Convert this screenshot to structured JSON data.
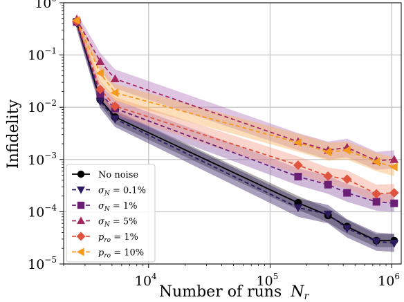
{
  "chart_data": {
    "type": "line",
    "xlabel": "Number of runs",
    "xlabel_symbol": "N",
    "xlabel_symbol_sub": "r",
    "ylabel": "Infidelity",
    "xscale": "log",
    "yscale": "log",
    "xlim": [
      2000,
      1200000
    ],
    "ylim": [
      1e-05,
      1
    ],
    "grid": true,
    "legend_position": "lower-left",
    "x_ticks": [
      {
        "value": 10000,
        "base": "10",
        "exp": "4"
      },
      {
        "value": 100000,
        "base": "10",
        "exp": "5"
      },
      {
        "value": 1000000,
        "base": "10",
        "exp": "6"
      }
    ],
    "y_ticks": [
      {
        "value": 1,
        "base": "10",
        "exp": "0"
      },
      {
        "value": 0.1,
        "base": "10",
        "exp": "−1"
      },
      {
        "value": 0.01,
        "base": "10",
        "exp": "−2"
      },
      {
        "value": 0.001,
        "base": "10",
        "exp": "−3"
      },
      {
        "value": 0.0001,
        "base": "10",
        "exp": "−4"
      },
      {
        "value": 1e-05,
        "base": "10",
        "exp": "−5"
      }
    ],
    "series": [
      {
        "name": "No noise",
        "symbol": "",
        "sub": "",
        "suffix": "No noise",
        "color": "#000000",
        "band": "#3a3a3a",
        "dash": "solid",
        "marker": "circle",
        "points": [
          {
            "x": 2560,
            "y": 0.42,
            "lo": 0.34,
            "hi": 0.52
          },
          {
            "x": 4000,
            "y": 0.014,
            "lo": 0.011,
            "hi": 0.018
          },
          {
            "x": 5300,
            "y": 0.0065,
            "lo": 0.0048,
            "hi": 0.0088
          },
          {
            "x": 170000,
            "y": 0.000148,
            "lo": 0.00011,
            "hi": 0.0002
          },
          {
            "x": 300000,
            "y": 8.5e-05,
            "lo": 6.2e-05,
            "hi": 0.000115
          },
          {
            "x": 430000,
            "y": 5.2e-05,
            "lo": 3.8e-05,
            "hi": 7e-05
          },
          {
            "x": 750000,
            "y": 2.8e-05,
            "lo": 2.1e-05,
            "hi": 3.7e-05
          },
          {
            "x": 1050000,
            "y": 2.8e-05,
            "lo": 2.1e-05,
            "hi": 3.7e-05
          }
        ]
      },
      {
        "name": "σN = 0.1%",
        "symbol": "σ",
        "sub": "N",
        "suffix": " = 0.1%",
        "color": "#2e1a5e",
        "band": "#2e1a5e",
        "dash": "dashed",
        "marker": "triangle-down",
        "points": [
          {
            "x": 2560,
            "y": 0.41,
            "lo": 0.31,
            "hi": 0.54
          },
          {
            "x": 4000,
            "y": 0.013,
            "lo": 0.0095,
            "hi": 0.018
          },
          {
            "x": 5300,
            "y": 0.006,
            "lo": 0.0042,
            "hi": 0.0085
          },
          {
            "x": 170000,
            "y": 0.00012,
            "lo": 8e-05,
            "hi": 0.00018
          },
          {
            "x": 300000,
            "y": 9e-05,
            "lo": 6e-05,
            "hi": 0.000135
          },
          {
            "x": 430000,
            "y": 4.8e-05,
            "lo": 3.2e-05,
            "hi": 7.2e-05
          },
          {
            "x": 750000,
            "y": 2.7e-05,
            "lo": 1.8e-05,
            "hi": 4e-05
          },
          {
            "x": 1050000,
            "y": 2.5e-05,
            "lo": 1.7e-05,
            "hi": 3.8e-05
          }
        ]
      },
      {
        "name": "σN = 1%",
        "symbol": "σ",
        "sub": "N",
        "suffix": " = 1%",
        "color": "#6a1f74",
        "band": "#8e5aa6",
        "dash": "dashed",
        "marker": "square",
        "points": [
          {
            "x": 2560,
            "y": 0.43,
            "lo": 0.33,
            "hi": 0.56
          },
          {
            "x": 4000,
            "y": 0.018,
            "lo": 0.012,
            "hi": 0.026
          },
          {
            "x": 5300,
            "y": 0.0095,
            "lo": 0.0065,
            "hi": 0.014
          },
          {
            "x": 170000,
            "y": 0.00047,
            "lo": 0.00032,
            "hi": 0.00068
          },
          {
            "x": 300000,
            "y": 0.00033,
            "lo": 0.00022,
            "hi": 0.00049
          },
          {
            "x": 430000,
            "y": 0.00023,
            "lo": 0.000155,
            "hi": 0.00034
          },
          {
            "x": 750000,
            "y": 0.000155,
            "lo": 0.000105,
            "hi": 0.00023
          },
          {
            "x": 1050000,
            "y": 0.000145,
            "lo": 0.0001,
            "hi": 0.00021
          }
        ]
      },
      {
        "name": "σN = 5%",
        "symbol": "σ",
        "sub": "N",
        "suffix": " = 5%",
        "color": "#a3285f",
        "band": "#b075b8",
        "dash": "dashed",
        "marker": "triangle-up",
        "points": [
          {
            "x": 2560,
            "y": 0.48,
            "lo": 0.36,
            "hi": 0.64
          },
          {
            "x": 4000,
            "y": 0.075,
            "lo": 0.05,
            "hi": 0.11
          },
          {
            "x": 5300,
            "y": 0.035,
            "lo": 0.023,
            "hi": 0.053
          },
          {
            "x": 170000,
            "y": 0.0022,
            "lo": 0.0015,
            "hi": 0.0032
          },
          {
            "x": 300000,
            "y": 0.0015,
            "lo": 0.001,
            "hi": 0.0022
          },
          {
            "x": 430000,
            "y": 0.0017,
            "lo": 0.0011,
            "hi": 0.0025
          },
          {
            "x": 750000,
            "y": 0.00095,
            "lo": 0.00064,
            "hi": 0.0014
          },
          {
            "x": 1050000,
            "y": 0.001,
            "lo": 0.00067,
            "hi": 0.0015
          }
        ]
      },
      {
        "name": "pro = 1%",
        "symbol": "p",
        "sub": "ro",
        "suffix": " = 1%",
        "color": "#e0533e",
        "band": "#f09a86",
        "dash": "dashed",
        "marker": "diamond",
        "points": [
          {
            "x": 2560,
            "y": 0.44,
            "lo": 0.34,
            "hi": 0.57
          },
          {
            "x": 4000,
            "y": 0.022,
            "lo": 0.015,
            "hi": 0.032
          },
          {
            "x": 5300,
            "y": 0.0105,
            "lo": 0.0072,
            "hi": 0.0155
          },
          {
            "x": 170000,
            "y": 0.00078,
            "lo": 0.00053,
            "hi": 0.00115
          },
          {
            "x": 300000,
            "y": 0.00048,
            "lo": 0.00033,
            "hi": 0.0007
          },
          {
            "x": 430000,
            "y": 0.00042,
            "lo": 0.00028,
            "hi": 0.00062
          },
          {
            "x": 750000,
            "y": 0.00022,
            "lo": 0.00015,
            "hi": 0.00033
          },
          {
            "x": 1050000,
            "y": 0.00023,
            "lo": 0.000155,
            "hi": 0.00034
          }
        ]
      },
      {
        "name": "pro = 10%",
        "symbol": "p",
        "sub": "ro",
        "suffix": " = 10%",
        "color": "#f39a1f",
        "band": "#f7b25a",
        "dash": "dashed",
        "marker": "triangle-left",
        "points": [
          {
            "x": 2560,
            "y": 0.46,
            "lo": 0.35,
            "hi": 0.6
          },
          {
            "x": 4000,
            "y": 0.045,
            "lo": 0.03,
            "hi": 0.067
          },
          {
            "x": 5300,
            "y": 0.019,
            "lo": 0.013,
            "hi": 0.028
          },
          {
            "x": 170000,
            "y": 0.0021,
            "lo": 0.0014,
            "hi": 0.0031
          },
          {
            "x": 300000,
            "y": 0.0014,
            "lo": 0.00095,
            "hi": 0.0021
          },
          {
            "x": 430000,
            "y": 0.0015,
            "lo": 0.001,
            "hi": 0.0022
          },
          {
            "x": 750000,
            "y": 0.0009,
            "lo": 0.0006,
            "hi": 0.00135
          },
          {
            "x": 1050000,
            "y": 0.00072,
            "lo": 0.00048,
            "hi": 0.00108
          }
        ]
      }
    ]
  }
}
